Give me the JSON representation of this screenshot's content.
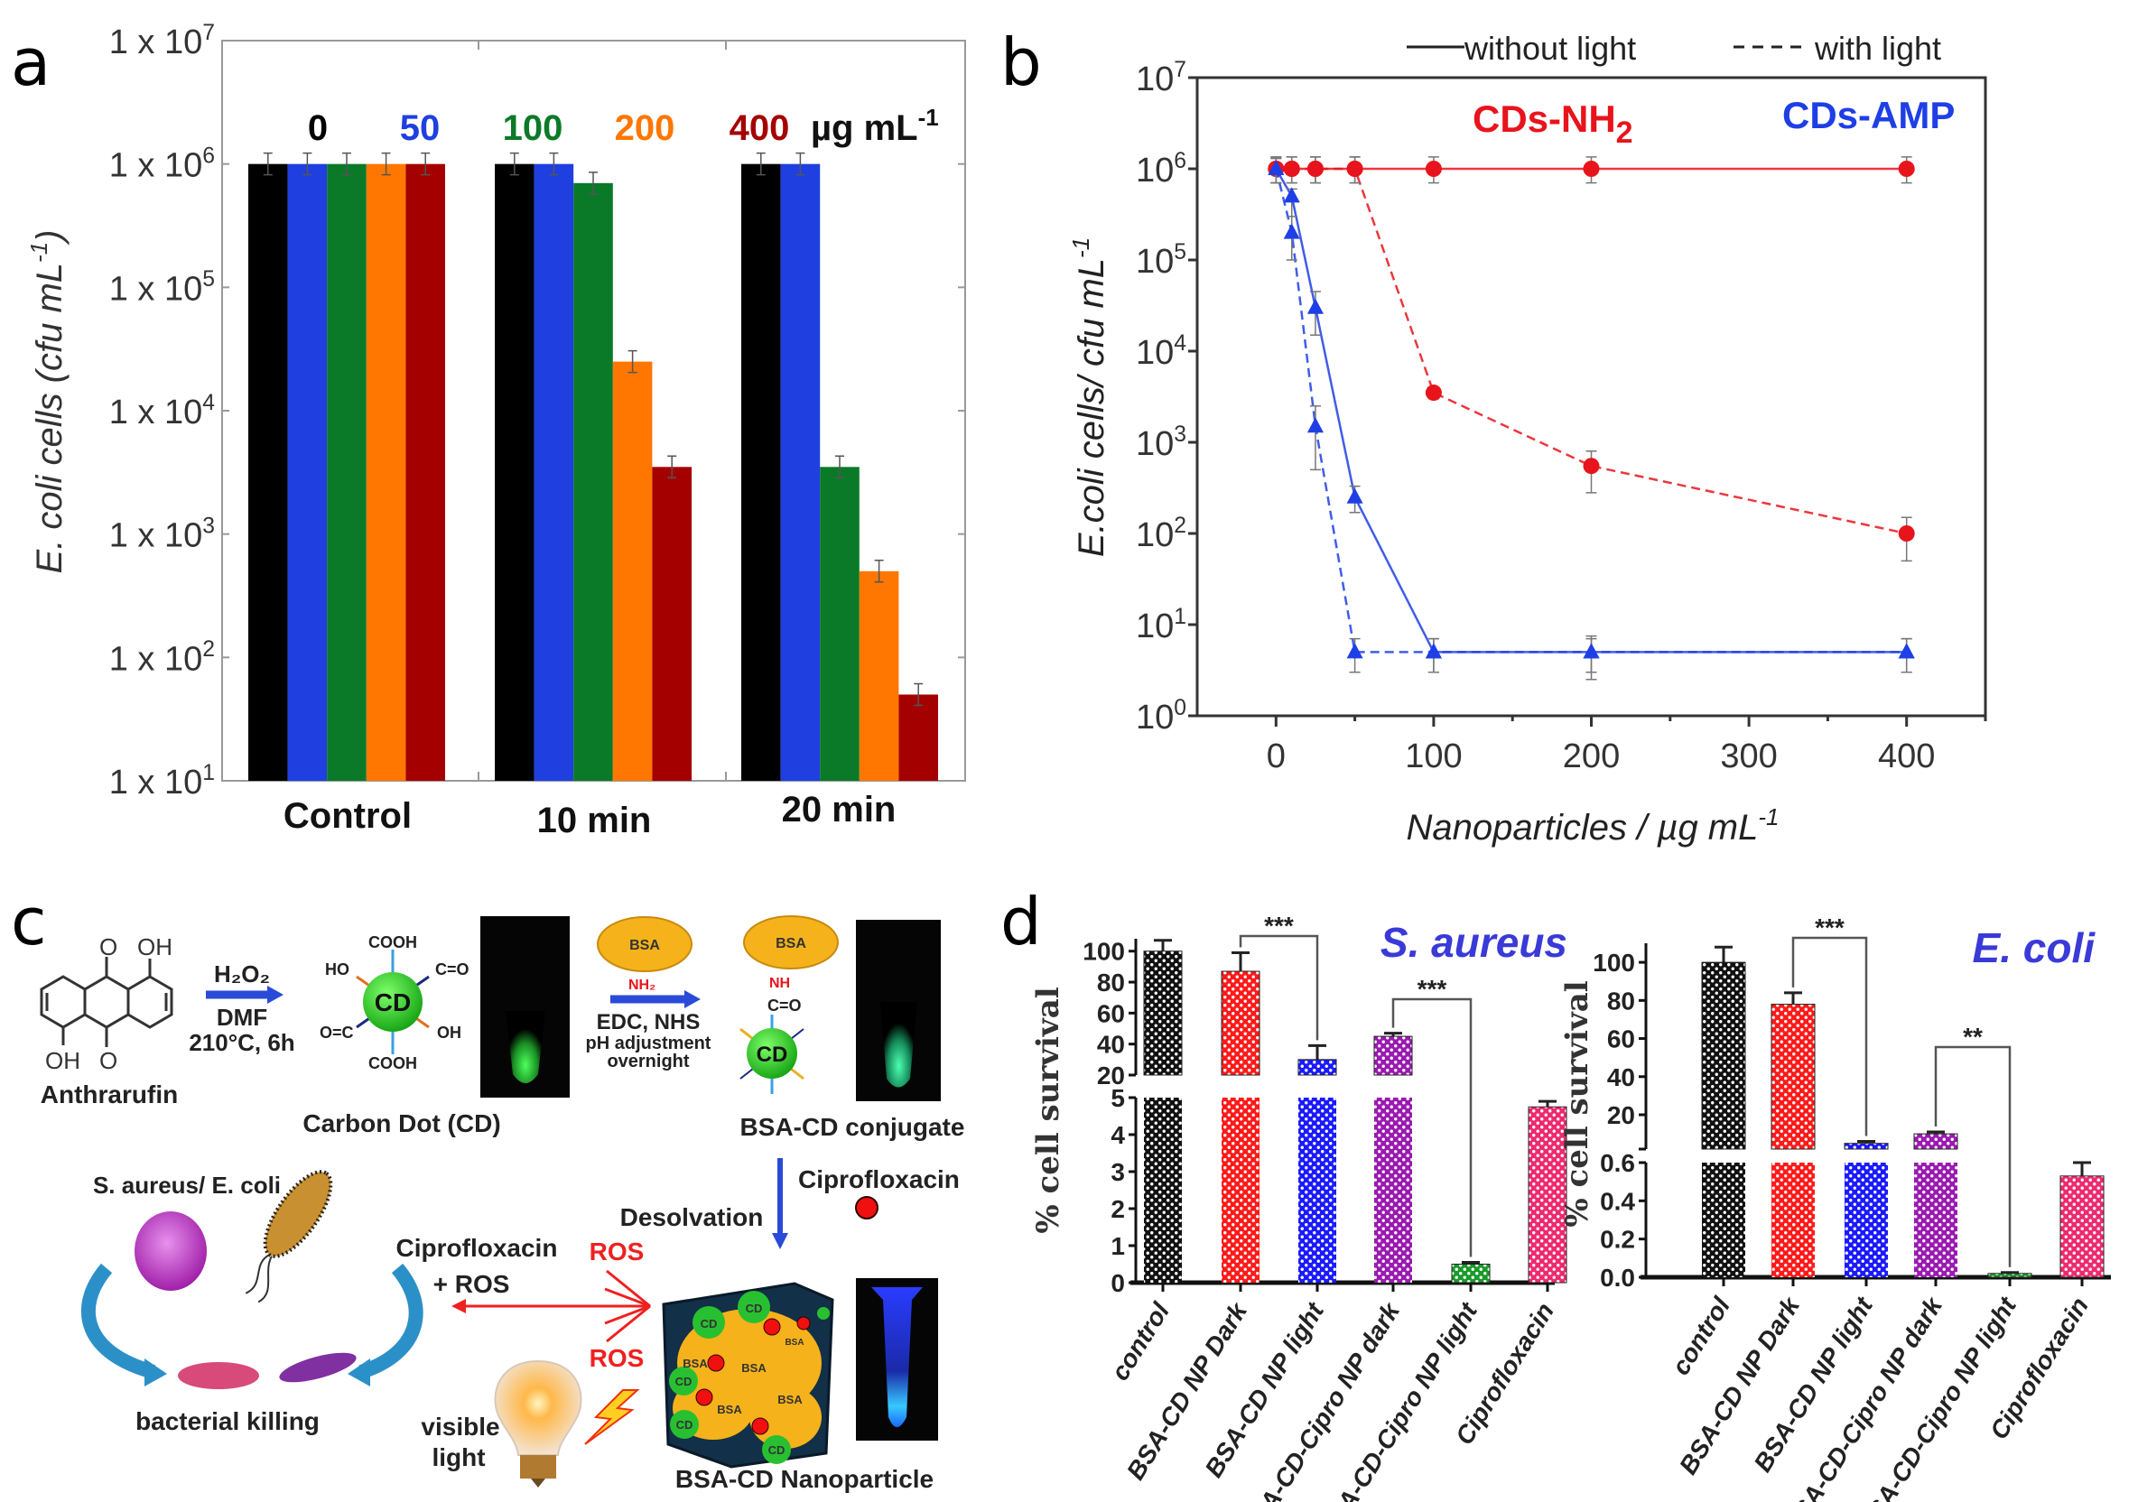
{
  "panel_labels": {
    "a": "a",
    "b": "b",
    "c": "c",
    "d": "d"
  },
  "chart_data": [
    {
      "panel": "a",
      "type": "bar",
      "y_scale": "log",
      "ylim": [
        10,
        10000000
      ],
      "ytick_prefix": "1 x 10",
      "ytick_exponents": [
        "1",
        "2",
        "3",
        "4",
        "5",
        "6",
        "7"
      ],
      "ylabel": {
        "text": "E. coli cells (cfu mL",
        "sup": "-1",
        "end": ")"
      },
      "categories": [
        "Control",
        "10 min",
        "20 min"
      ],
      "legend_unit": {
        "text": "µg mL",
        "sup": "-1"
      },
      "series": [
        {
          "name": "0",
          "color": "#000000",
          "values": [
            1000000,
            1000000,
            1000000
          ]
        },
        {
          "name": "50",
          "color": "#1f3fe0",
          "values": [
            1000000,
            1000000,
            1000000
          ]
        },
        {
          "name": "100",
          "color": "#0a7a28",
          "values": [
            1000000,
            700000,
            3500
          ]
        },
        {
          "name": "200",
          "color": "#ff7700",
          "values": [
            1000000,
            25000,
            500
          ]
        },
        {
          "name": "400",
          "color": "#a50000",
          "values": [
            1000000,
            3500,
            50
          ]
        }
      ],
      "grid": false
    },
    {
      "panel": "b",
      "type": "line",
      "y_scale": "log",
      "ylim": [
        1,
        10000000
      ],
      "xlim": [
        -50,
        450
      ],
      "xticks": [
        "0",
        "100",
        "200",
        "300",
        "400"
      ],
      "ytick_prefix": "10",
      "ytick_exponents": [
        "0",
        "1",
        "2",
        "3",
        "4",
        "5",
        "6",
        "7"
      ],
      "xlabel": {
        "text": "Nanoparticles / µg mL",
        "sup": "-1"
      },
      "ylabel": {
        "text": "E.coli cells/ cfu mL",
        "sup": "-1"
      },
      "legend": {
        "solid": "without light",
        "dashed": "with light",
        "placement": "top"
      },
      "group_labels": [
        {
          "text": "CDs-NH",
          "sub": "2",
          "color": "#e8141c"
        },
        {
          "text": "CDs-AMP",
          "sub": "",
          "color": "#1e3fe6"
        }
      ],
      "x": [
        0,
        10,
        25,
        50,
        100,
        200,
        400
      ],
      "series": [
        {
          "group": "CDs-NH2",
          "style": "without light",
          "color": "#e8141c",
          "marker": "circle",
          "values": [
            1000000,
            1000000,
            1000000,
            1000000,
            1000000,
            1000000,
            1000000
          ],
          "err_low": [
            700000,
            700000,
            700000,
            700000,
            700000,
            700000,
            700000
          ],
          "err_high": [
            1350000,
            1350000,
            1350000,
            1350000,
            1350000,
            1350000,
            1350000
          ]
        },
        {
          "group": "CDs-NH2",
          "style": "with light",
          "color": "#e8141c",
          "marker": "circle",
          "values": [
            1000000,
            1000000,
            1000000,
            1000000,
            3500,
            550,
            100
          ],
          "err_low": [
            700000,
            700000,
            700000,
            700000,
            3000,
            280,
            50
          ],
          "err_high": [
            1350000,
            1350000,
            1350000,
            1350000,
            4000,
            800,
            150
          ]
        },
        {
          "group": "CDs-AMP",
          "style": "without light",
          "color": "#1e3fe6",
          "marker": "triangle",
          "values": [
            1000000,
            500000,
            30000,
            250,
            5,
            5,
            5
          ],
          "err_low": [
            700000,
            300000,
            15000,
            170,
            3,
            3,
            3
          ],
          "err_high": [
            1300000,
            600000,
            45000,
            330,
            7,
            7.5,
            7
          ]
        },
        {
          "group": "CDs-AMP",
          "style": "with light",
          "color": "#1e3fe6",
          "marker": "triangle",
          "values": [
            1000000,
            200000,
            1500,
            5,
            5,
            5,
            5
          ],
          "err_low": [
            700000,
            100000,
            500,
            3,
            3,
            2.5,
            3
          ],
          "err_high": [
            1300000,
            300000,
            2500,
            7,
            7,
            7,
            7
          ]
        }
      ],
      "grid": false
    },
    {
      "panel": "d-left",
      "type": "bar",
      "title": "S. aureus",
      "ylabel": "% cell survival",
      "y_axis_break": {
        "lower": [
          0,
          5
        ],
        "upper": [
          20,
          108
        ]
      },
      "upper_ticks": [
        "20",
        "40",
        "60",
        "80",
        "100"
      ],
      "lower_ticks": [
        "0",
        "1",
        "2",
        "3",
        "4",
        "5"
      ],
      "categories": [
        "control",
        "BSA-CD NP Dark",
        "BSA-CD NP light",
        "BSA-CD-Cipro NP dark",
        "BSA-CD-Cipro NP light",
        "Ciprofloxacin"
      ],
      "values": [
        100,
        87,
        30,
        45,
        0.5,
        4.75
      ],
      "err_high": [
        107,
        99,
        39,
        47,
        0.55,
        4.9
      ],
      "colors": [
        "#111111",
        "#ff1a1a",
        "#1a1aff",
        "#9a1ab0",
        "#1a9a2a",
        "#ee2a6e"
      ],
      "significance": [
        {
          "from": 1,
          "to": 2,
          "label": "***"
        },
        {
          "from": 3,
          "to": 4,
          "label": "***"
        }
      ]
    },
    {
      "panel": "d-right",
      "type": "bar",
      "title": "E. coli",
      "ylabel": "% cell survival",
      "y_axis_break": {
        "lower": [
          0,
          0.6
        ],
        "upper": [
          2,
          110
        ]
      },
      "upper_ticks": [
        "20",
        "40",
        "60",
        "80",
        "100"
      ],
      "lower_ticks": [
        "0.0",
        "0.2",
        "0.4",
        "0.6"
      ],
      "categories": [
        "control",
        "BSA-CD NP Dark",
        "BSA-CD NP light",
        "BSA-CD-Cipro NP dark",
        "BSA-CD-Cipro NP light",
        "Ciprofloxacin"
      ],
      "values": [
        100,
        78,
        5,
        10,
        0.02,
        0.53
      ],
      "err_high": [
        108,
        84,
        6,
        11,
        0.025,
        0.6
      ],
      "colors": [
        "#111111",
        "#ff1a1a",
        "#1a1aff",
        "#9a1ab0",
        "#1a9a2a",
        "#ee2a6e"
      ],
      "significance": [
        {
          "from": 1,
          "to": 2,
          "label": "***"
        },
        {
          "from": 3,
          "to": 4,
          "label": "**"
        }
      ]
    }
  ],
  "diagram": {
    "anthrarufin": "Anthrarufin",
    "o": "O",
    "oh": "OH",
    "reagent": "H₂O₂",
    "solvent": "DMF",
    "conditions": "210°C, 6h",
    "cd": "CD",
    "cooh": "COOH",
    "ho": "HO",
    "co": "C=O",
    "oc": "O=C",
    "carbon_dot": "Carbon Dot (CD)",
    "bsa": "BSA",
    "nh2": "NH₂",
    "coupling": "EDC, NHS",
    "ph": "pH adjustment",
    "overnight": "overnight",
    "nh": "NH",
    "conjugate": "BSA-CD conjugate",
    "ciprofloxacin": "Ciprofloxacin",
    "desolvation": "Desolvation",
    "bacteria": "S. aureus/ E. coli",
    "killing": "bacterial killing",
    "plus_ros": "+ ROS",
    "ros": "ROS",
    "visible": "visible",
    "light": "light",
    "nanoparticle": "BSA-CD Nanoparticle"
  }
}
